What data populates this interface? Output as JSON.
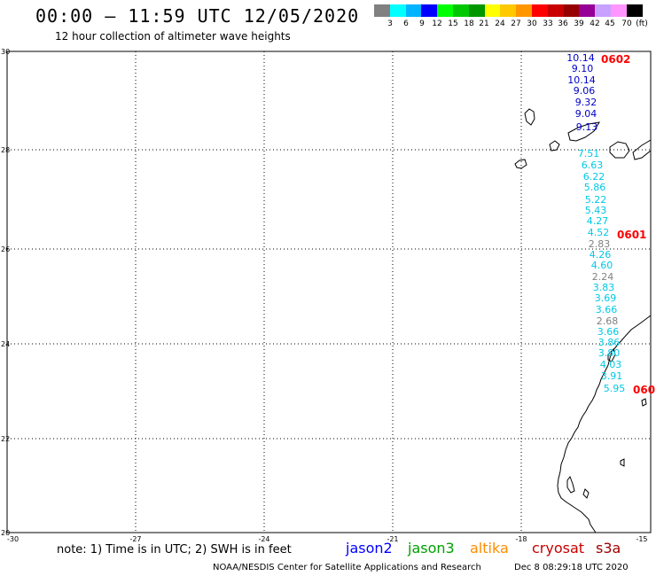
{
  "header": {
    "title": "00:00 – 11:59 UTC 12/05/2020",
    "subtitle": "12 hour collection of altimeter wave heights"
  },
  "colorbar": {
    "colors": [
      "#808080",
      "#00ffff",
      "#00b4ff",
      "#0000ff",
      "#00ff00",
      "#00c800",
      "#009600",
      "#ffff00",
      "#ffc800",
      "#ff9600",
      "#ff0000",
      "#c80000",
      "#960000",
      "#960096",
      "#c8a0ff",
      "#ff96ff",
      "#000000"
    ],
    "labels": [
      "3",
      "6",
      "9",
      "12",
      "15",
      "18",
      "21",
      "24",
      "27",
      "30",
      "33",
      "36",
      "39",
      "42",
      "45",
      "70",
      "(ft)"
    ]
  },
  "axes": {
    "lat_labels": [
      "30",
      "28",
      "26",
      "24",
      "22",
      "20"
    ],
    "lon_labels": [
      "-30",
      "-27",
      "-24",
      "-21",
      "-18",
      "-15"
    ],
    "lat_range": [
      20,
      30
    ],
    "lon_range": [
      -30,
      -15
    ]
  },
  "observations": [
    {
      "text": "10.14",
      "color": "#0000c8"
    },
    {
      "text": "9.10",
      "color": "#0000c8"
    },
    {
      "text": "10.14",
      "color": "#0000c8"
    },
    {
      "text": "9.06",
      "color": "#0000c8"
    },
    {
      "text": "9.32",
      "color": "#0000c8"
    },
    {
      "text": "9.04",
      "color": "#0000c8"
    },
    {
      "text": "9.13",
      "color": "#0000c8"
    },
    {
      "text": "7.51",
      "color": "#00c8e6"
    },
    {
      "text": "6.63",
      "color": "#00c8e6"
    },
    {
      "text": "6.22",
      "color": "#00c8e6"
    },
    {
      "text": "5.86",
      "color": "#00c8e6"
    },
    {
      "text": "5.22",
      "color": "#00c8e6"
    },
    {
      "text": "5.43",
      "color": "#00c8e6"
    },
    {
      "text": "4.27",
      "color": "#00c8e6"
    },
    {
      "text": "4.52",
      "color": "#00c8e6"
    },
    {
      "text": "2.83",
      "color": "#808080"
    },
    {
      "text": "4.26",
      "color": "#00c8e6"
    },
    {
      "text": "4.60",
      "color": "#00c8e6"
    },
    {
      "text": "2.24",
      "color": "#808080"
    },
    {
      "text": "3.83",
      "color": "#00c8e6"
    },
    {
      "text": "3.69",
      "color": "#00c8e6"
    },
    {
      "text": "3.66",
      "color": "#00c8e6"
    },
    {
      "text": "2.68",
      "color": "#808080"
    },
    {
      "text": "3.66",
      "color": "#00c8e6"
    },
    {
      "text": "3.86",
      "color": "#00c8e6"
    },
    {
      "text": "3.80",
      "color": "#00c8e6"
    },
    {
      "text": "4.03",
      "color": "#00c8e6"
    },
    {
      "text": "3.91",
      "color": "#00c8e6"
    },
    {
      "text": "5.95",
      "color": "#00c8e6"
    }
  ],
  "pass_labels": [
    {
      "text": "0602"
    },
    {
      "text": "0601"
    },
    {
      "text": "060"
    }
  ],
  "footer": {
    "note": "note: 1) Time is in UTC; 2) SWH is in feet",
    "satellites": [
      {
        "name": "jason2",
        "color": "#0000ff"
      },
      {
        "name": "jason3",
        "color": "#00a000"
      },
      {
        "name": "altika",
        "color": "#ff8c00"
      },
      {
        "name": "cryosat",
        "color": "#c80000"
      },
      {
        "name": "s3a",
        "color": "#a00000"
      }
    ],
    "credit": "NOAA/NESDIS Center for Satellite Applications and Research",
    "timestamp": "Dec  8 08:29:18 UTC 2020"
  }
}
